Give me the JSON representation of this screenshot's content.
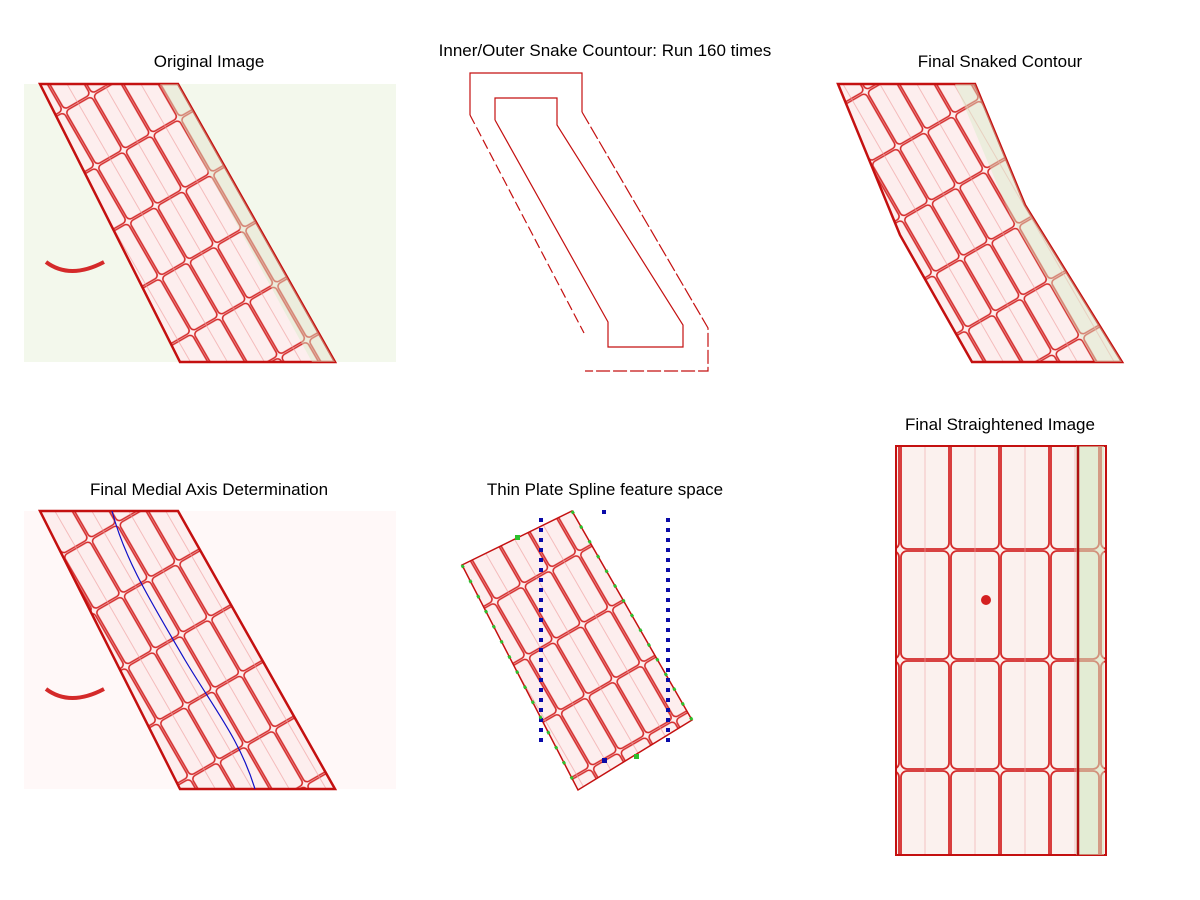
{
  "panels": [
    {
      "title": "Original Image"
    },
    {
      "title": "Inner/Outer Snake Countour: Run 160 times"
    },
    {
      "title": "Final Snaked Contour"
    },
    {
      "title": "Final Medial Axis Determination"
    },
    {
      "title": "Thin Plate Spline feature space"
    },
    {
      "title": "Final Straightened Image"
    }
  ]
}
